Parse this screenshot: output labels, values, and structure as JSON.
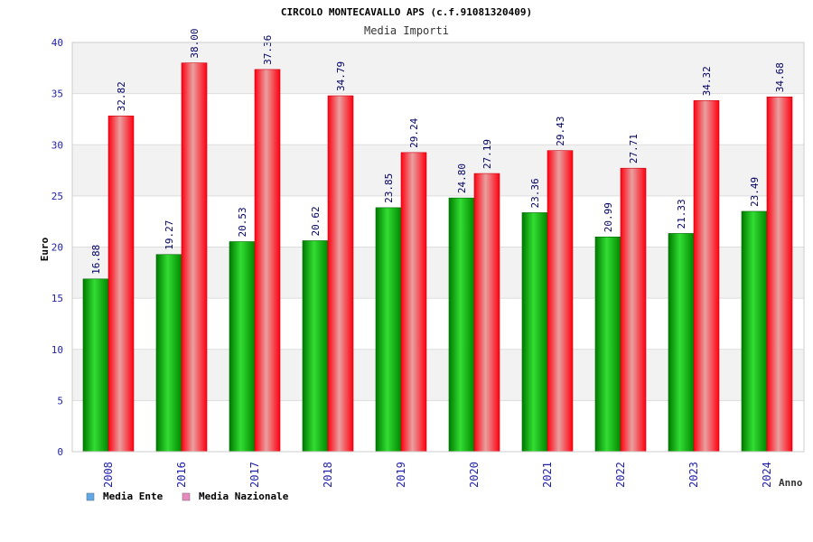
{
  "chart_data": {
    "type": "bar",
    "title": "CIRCOLO MONTECAVALLO APS (c.f.91081320409)",
    "subtitle": "Media Importi",
    "xlabel": "Anno",
    "ylabel": "Euro",
    "ylim": [
      0,
      40
    ],
    "yticks": [
      "0",
      "5",
      "10",
      "15",
      "20",
      "25",
      "30",
      "35",
      "40"
    ],
    "categories": [
      "2008",
      "2016",
      "2017",
      "2018",
      "2019",
      "2020",
      "2021",
      "2022",
      "2023",
      "2024"
    ],
    "series": [
      {
        "name": "Media Ente",
        "color": "#22b122",
        "legend_color": "#5fa8e8",
        "values": [
          16.88,
          19.27,
          20.53,
          20.62,
          23.85,
          24.8,
          23.36,
          20.99,
          21.33,
          23.49
        ],
        "labels": [
          "16.88",
          "19.27",
          "20.53",
          "20.62",
          "23.85",
          "24.80",
          "23.36",
          "20.99",
          "21.33",
          "23.49"
        ]
      },
      {
        "name": "Media Nazionale",
        "color": "#e8303a",
        "legend_color": "#e88ac0",
        "values": [
          32.82,
          38.0,
          37.36,
          34.79,
          29.24,
          27.19,
          29.43,
          27.71,
          34.32,
          34.68
        ],
        "labels": [
          "32.82",
          "38.00",
          "37.36",
          "34.79",
          "29.24",
          "27.19",
          "29.43",
          "27.71",
          "34.32",
          "34.68"
        ]
      }
    ],
    "grid": true,
    "legend_position": "bottom-left"
  },
  "colors": {
    "axis_text": "#2222aa",
    "label_text": "#000066",
    "band": "#f2f2f2",
    "frame": "#cccccc"
  }
}
